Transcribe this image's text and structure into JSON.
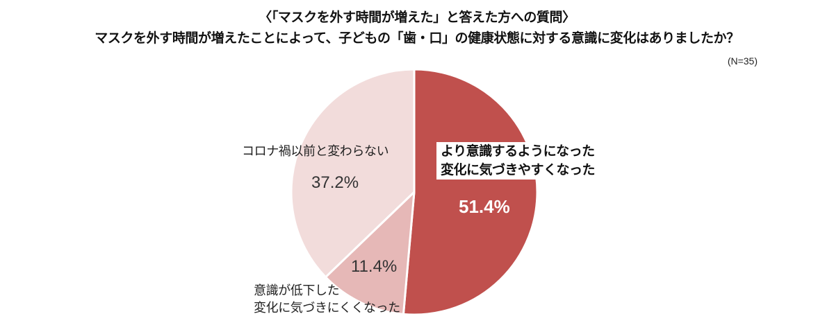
{
  "header": {
    "title_line1": "〈「マスクを外す時間が増えた」と答えた方への質問〉",
    "title_line2": "マスクを外す時間が増えたことによって、子どもの「歯・口」の健康状態に対する意識に変化はありましたか？",
    "sample_note": "(N=35)"
  },
  "chart_data": {
    "type": "pie",
    "title": "マスクを外す時間が増えたことによって、子どもの「歯・口」の健康状態に対する意識に変化はありましたか？",
    "n": 35,
    "slices": [
      {
        "label_line1": "より意識するようになった",
        "label_line2": "変化に気づきやすくなった",
        "value": 51.4,
        "display": "51.4%",
        "color": "#c0504d"
      },
      {
        "label_line1": "意識が低下した",
        "label_line2": "変化に気づきにくくなった",
        "value": 11.4,
        "display": "11.4%",
        "color": "#e6b8b7"
      },
      {
        "label_line1": "コロナ禍以前と変わらない",
        "label_line2": "",
        "value": 37.2,
        "display": "37.2%",
        "color": "#f2dcdb"
      }
    ]
  }
}
